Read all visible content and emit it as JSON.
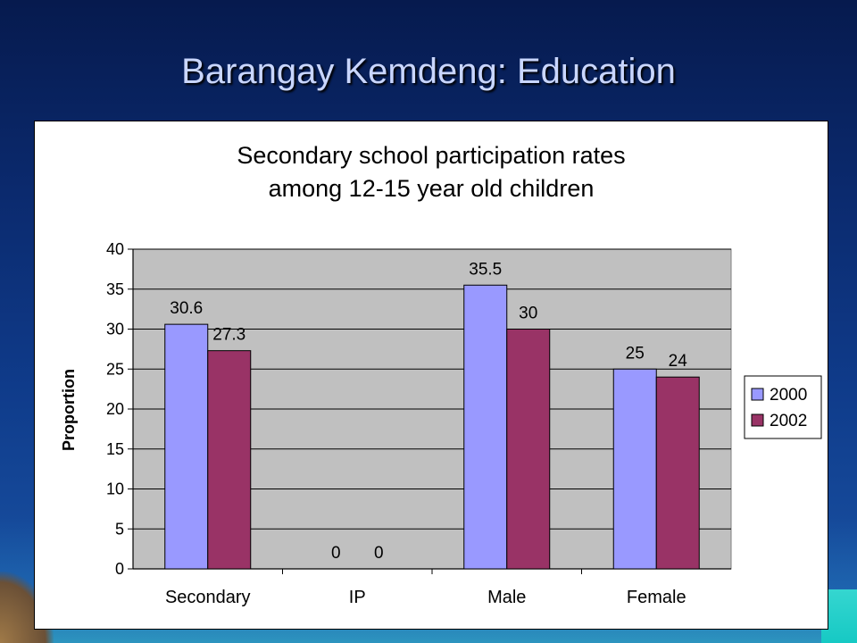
{
  "slide": {
    "title": "Barangay Kemdeng: Education"
  },
  "colors": {
    "series_2000": "#9999ff",
    "series_2002": "#993366",
    "plot_bg": "#c0c0c0"
  },
  "chart_data": {
    "type": "bar",
    "title_lines": [
      "Secondary school participation rates",
      "among 12-15 year old children"
    ],
    "xlabel": "",
    "ylabel": "Proportion",
    "categories": [
      "Secondary",
      "IP",
      "Male",
      "Female"
    ],
    "series": [
      {
        "name": "2000",
        "values": [
          30.6,
          0,
          35.5,
          25
        ],
        "labels": [
          "30.6",
          "0",
          "35.5",
          "25"
        ]
      },
      {
        "name": "2002",
        "values": [
          27.3,
          0,
          30,
          24
        ],
        "labels": [
          "27.3",
          "0",
          "30",
          "24"
        ]
      }
    ],
    "ylim": [
      0,
      40
    ],
    "yticks": [
      0,
      5,
      10,
      15,
      20,
      25,
      30,
      35,
      40
    ],
    "grid": true,
    "legend": "right"
  }
}
